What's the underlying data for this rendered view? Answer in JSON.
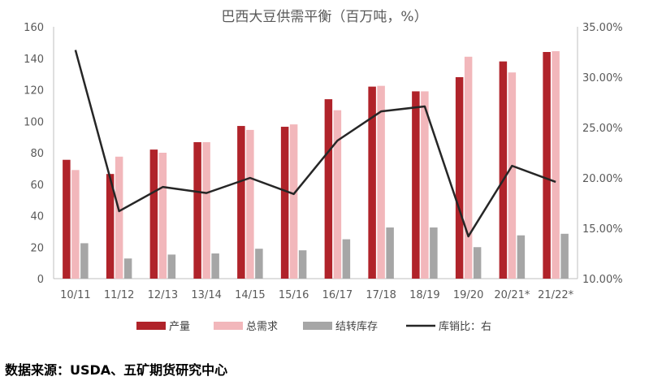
{
  "title": "巴西大豆供需平衡（百万吨，%）",
  "source": "数据来源：USDA、五矿期货研究中心",
  "chart_data": {
    "type": "bar",
    "categories": [
      "10/11",
      "11/12",
      "12/13",
      "13/14",
      "14/15",
      "15/16",
      "16/17",
      "17/18",
      "18/19",
      "19/20",
      "20/21*",
      "21/22*"
    ],
    "series": [
      {
        "name": "产量",
        "type": "bar",
        "axis": "left",
        "color": "#b0232a",
        "values": [
          75.5,
          66.5,
          82,
          86.7,
          97,
          96.5,
          114,
          122,
          119,
          128,
          138,
          144
        ]
      },
      {
        "name": "总需求",
        "type": "bar",
        "axis": "left",
        "color": "#f2b7bb",
        "values": [
          69,
          77.5,
          80,
          86.7,
          94.5,
          98,
          107,
          122.5,
          119,
          141,
          131,
          144.5
        ]
      },
      {
        "name": "结转库存",
        "type": "bar",
        "axis": "left",
        "color": "#a6a6a6",
        "values": [
          22.5,
          12.8,
          15.3,
          16,
          19,
          18,
          25,
          32.5,
          32.5,
          20,
          27.5,
          28.5
        ]
      },
      {
        "name": "库销比：右",
        "type": "line",
        "axis": "right",
        "color": "#262626",
        "values": [
          32.7,
          16.7,
          19.1,
          18.5,
          20.0,
          18.4,
          23.7,
          26.6,
          27.1,
          14.2,
          21.2,
          19.6
        ]
      }
    ],
    "ylim_left": [
      0,
      160
    ],
    "yticks_left": [
      "0",
      "20",
      "40",
      "60",
      "80",
      "100",
      "120",
      "140",
      "160"
    ],
    "ylim_right": [
      10,
      35
    ],
    "yticks_right": [
      "10.00%",
      "15.00%",
      "20.00%",
      "25.00%",
      "30.00%",
      "35.00%"
    ],
    "grid": false,
    "legend_position": "bottom"
  }
}
